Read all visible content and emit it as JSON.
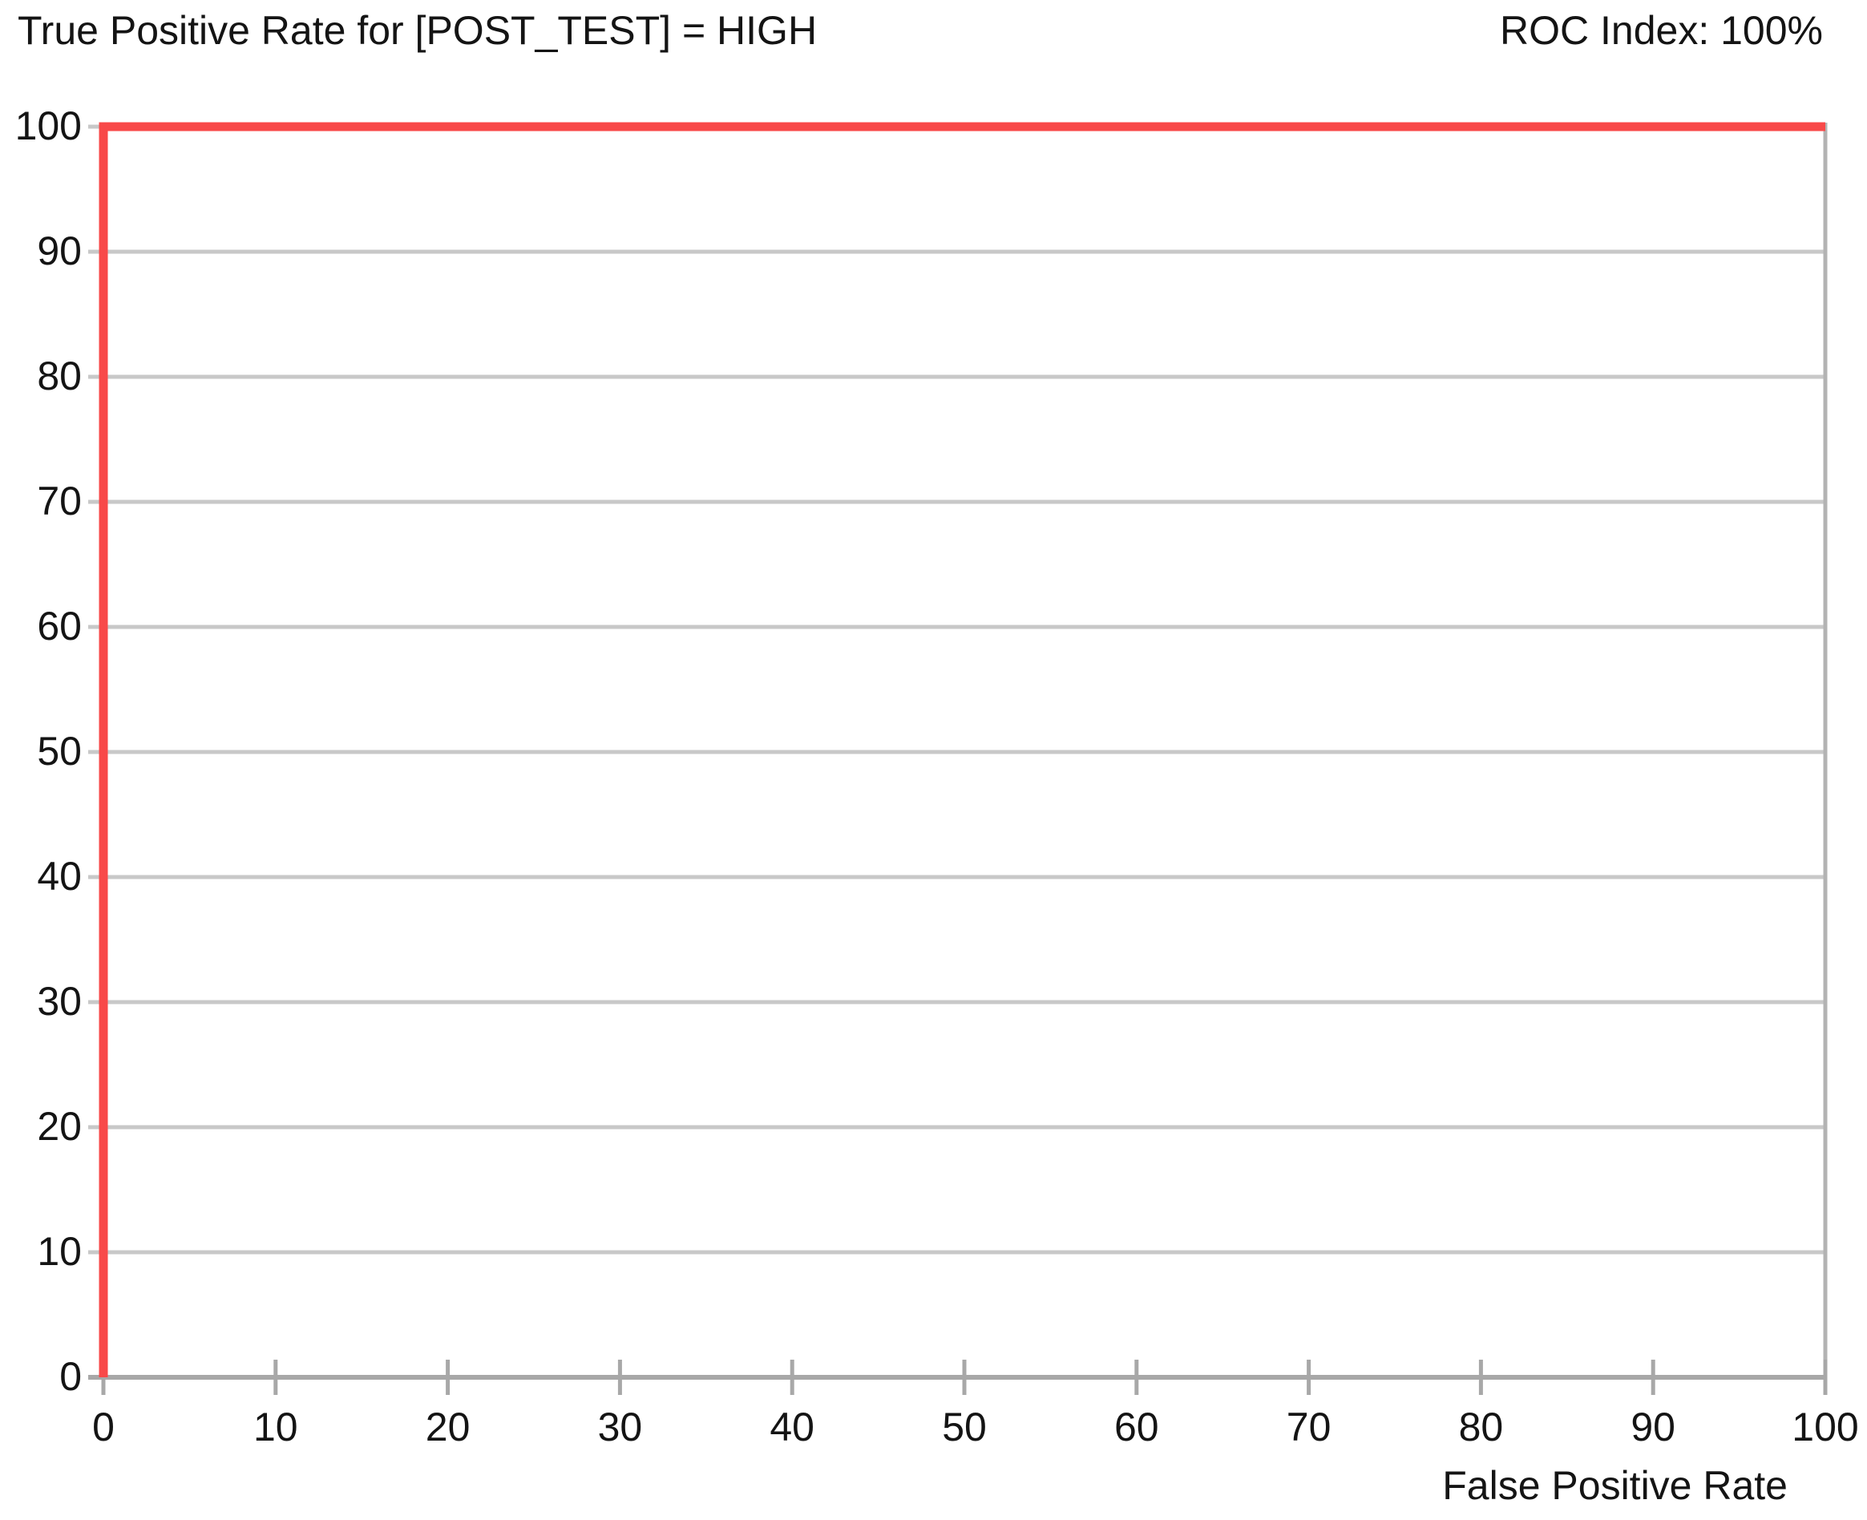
{
  "chart_data": {
    "type": "line",
    "title": "True Positive Rate for [POST_TEST] = HIGH",
    "annotation": "ROC Index: 100%",
    "roc_index_percent": 100,
    "xlabel": "False Positive Rate",
    "xlim": [
      0,
      100
    ],
    "ylim": [
      0,
      100
    ],
    "xticks": [
      0,
      10,
      20,
      30,
      40,
      50,
      60,
      70,
      80,
      90,
      100
    ],
    "yticks": [
      0,
      10,
      20,
      30,
      40,
      50,
      60,
      70,
      80,
      90,
      100
    ],
    "grid": "horizontal-only",
    "legend": "none",
    "series": [
      {
        "name": "roc_curve",
        "color": "#f84949",
        "points": [
          [
            0,
            0
          ],
          [
            0,
            100
          ],
          [
            100,
            100
          ]
        ]
      }
    ]
  },
  "colors": {
    "curve": "#f84949",
    "gridline": "#c8c8c8",
    "axis": "#a8a8a8",
    "plot_border": "#b3b3b3",
    "text": "#141414",
    "background": "#ffffff"
  }
}
